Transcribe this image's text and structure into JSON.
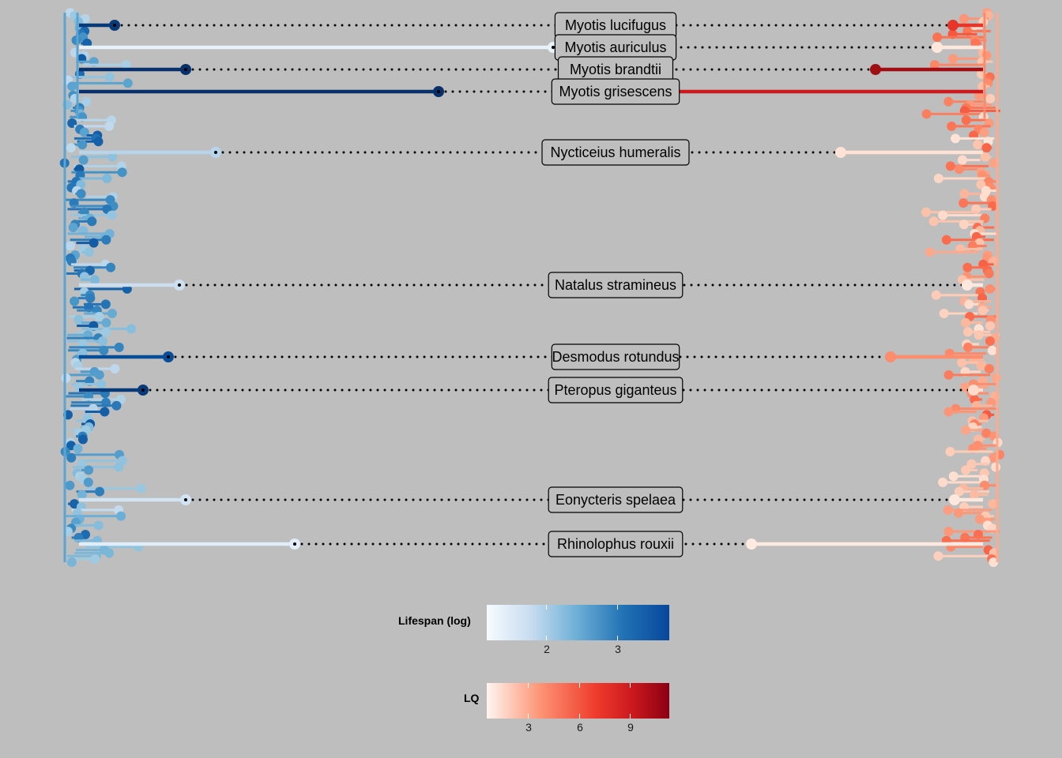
{
  "chart_data": {
    "type": "mirrored-phylogeny-lollipop",
    "left_series": "Lifespan (log)",
    "right_series": "LQ",
    "highlighted_species": [
      {
        "name": "Myotis lucifugus",
        "lifespan_log": 3.6,
        "lq": 7.5
      },
      {
        "name": "Myotis auriculus",
        "lifespan_log": 1.2,
        "lq": 1.6
      },
      {
        "name": "Myotis brandtii",
        "lifespan_log": 3.7,
        "lq": 10.0
      },
      {
        "name": "Myotis grisescens",
        "lifespan_log": 3.8,
        "lq": 8.5
      },
      {
        "name": "Nycticeius humeralis",
        "lifespan_log": 1.8,
        "lq": 1.9
      },
      {
        "name": "Natalus stramineus",
        "lifespan_log": 1.6,
        "lq": 1.5
      },
      {
        "name": "Desmodus rotundus",
        "lifespan_log": 3.4,
        "lq": 4.8
      },
      {
        "name": "Pteropus giganteus",
        "lifespan_log": 3.6,
        "lq": 2.2
      },
      {
        "name": "Eonycteris spelaea",
        "lifespan_log": 1.5,
        "lq": 1.5
      },
      {
        "name": "Rhinolophus rouxii",
        "lifespan_log": 1.3,
        "lq": 1.4
      }
    ],
    "legends": [
      {
        "title": "Lifespan (log)",
        "palette": "blues",
        "domain": [
          1.0,
          3.7
        ],
        "ticks": [
          {
            "value": 2,
            "label": "2"
          },
          {
            "value": 3,
            "label": "3"
          }
        ]
      },
      {
        "title": "LQ",
        "palette": "reds",
        "domain": [
          0.7,
          11.2
        ],
        "ticks": [
          {
            "value": 3,
            "label": "3"
          },
          {
            "value": 6,
            "label": "6"
          },
          {
            "value": 9,
            "label": "9"
          }
        ]
      }
    ],
    "colors": {
      "background": "#bebebe",
      "blues": [
        "#f7fbff",
        "#deebf7",
        "#c6dbef",
        "#9ecae1",
        "#6baed6",
        "#4292c6",
        "#2171b5",
        "#08519c",
        "#08306b"
      ],
      "reds": [
        "#fff5f0",
        "#fee0d2",
        "#fcbba1",
        "#fc9272",
        "#fb6a4a",
        "#ef3b2c",
        "#cb181d",
        "#a50f15",
        "#67000d"
      ]
    }
  }
}
